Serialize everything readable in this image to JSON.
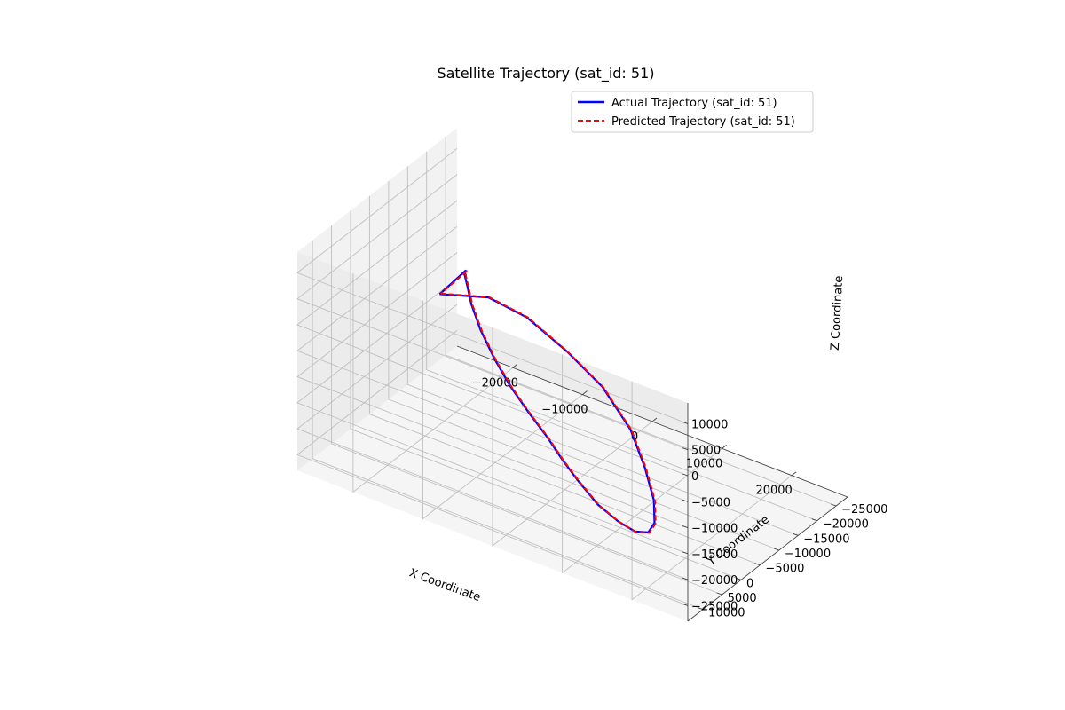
{
  "chart_data": {
    "type": "line",
    "projection": "3d",
    "title": "Satellite Trajectory (sat_id: 51)",
    "xlabel": "X Coordinate",
    "ylabel": "Y Coordinate",
    "zlabel": "Z Coordinate",
    "x_ticks": [
      "−20000",
      "−10000",
      "0",
      "10000",
      "20000"
    ],
    "y_ticks": [
      "10000",
      "5000",
      "0",
      "−5000",
      "−10000",
      "−15000",
      "−20000",
      "−25000"
    ],
    "z_ticks": [
      "10000",
      "5000",
      "0",
      "−5000",
      "−10000",
      "−15000",
      "−20000",
      "−25000"
    ],
    "grid": true,
    "legend_position": "top-right",
    "legend": [
      {
        "label": "Actual Trajectory (sat_id: 51)",
        "color": "#0000ff",
        "style": "solid"
      },
      {
        "label": "Predicted Trajectory (sat_id: 51)",
        "color": "#ff0000",
        "style": "dashed"
      }
    ],
    "series": [
      {
        "name": "Actual Trajectory (sat_id: 51)",
        "color": "#0000ff",
        "style": "solid",
        "points": [
          [
            -9500,
            10500,
            13500
          ],
          [
            -2500,
            10500,
            16500
          ],
          [
            3000,
            10500,
            15500
          ],
          [
            8500,
            10000,
            11500
          ],
          [
            13000,
            9000,
            6500
          ],
          [
            16500,
            8000,
            -500
          ],
          [
            18000,
            7000,
            -7500
          ],
          [
            18500,
            5500,
            -14500
          ],
          [
            17500,
            3500,
            -20500
          ],
          [
            15500,
            1500,
            -24500
          ],
          [
            12500,
            -500,
            -27000
          ],
          [
            9000,
            -2500,
            -28000
          ],
          [
            5000,
            -4500,
            -28000
          ],
          [
            1000,
            -6500,
            -26500
          ],
          [
            -2000,
            -8000,
            -25000
          ],
          [
            -5000,
            -9500,
            -23000
          ],
          [
            -8000,
            -10000,
            -20000
          ],
          [
            -10500,
            -10000,
            -16500
          ],
          [
            -12500,
            -9500,
            -12000
          ],
          [
            -14000,
            -8500,
            -6500
          ],
          [
            -14500,
            -7000,
            -1000
          ],
          [
            -14000,
            -5000,
            4000
          ],
          [
            -13000,
            -2500,
            8000
          ],
          [
            -11500,
            0,
            11000
          ],
          [
            -9500,
            10500,
            13500
          ]
        ]
      },
      {
        "name": "Predicted Trajectory (sat_id: 51)",
        "color": "#ff0000",
        "style": "dashed",
        "points": [
          [
            -9400,
            10400,
            13600
          ],
          [
            -2400,
            10500,
            16600
          ],
          [
            3100,
            10400,
            15500
          ],
          [
            8600,
            9900,
            11400
          ],
          [
            13100,
            8900,
            6400
          ],
          [
            16600,
            7900,
            -600
          ],
          [
            18100,
            6900,
            -7600
          ],
          [
            18600,
            5400,
            -14600
          ],
          [
            17600,
            3400,
            -20600
          ],
          [
            15600,
            1400,
            -24600
          ],
          [
            12600,
            -600,
            -27100
          ],
          [
            9100,
            -2600,
            -28100
          ],
          [
            5100,
            -4600,
            -28100
          ],
          [
            1100,
            -6600,
            -26600
          ],
          [
            -1900,
            -8100,
            -25100
          ],
          [
            -4900,
            -9600,
            -23100
          ],
          [
            -7900,
            -10100,
            -20100
          ],
          [
            -10400,
            -10100,
            -16600
          ],
          [
            -12400,
            -9600,
            -12100
          ],
          [
            -13900,
            -8600,
            -6600
          ],
          [
            -14400,
            -7100,
            -1100
          ],
          [
            -13900,
            -5100,
            3900
          ],
          [
            -12900,
            -2600,
            7900
          ],
          [
            -11400,
            -100,
            10900
          ],
          [
            -9400,
            10400,
            13600
          ]
        ]
      }
    ]
  }
}
